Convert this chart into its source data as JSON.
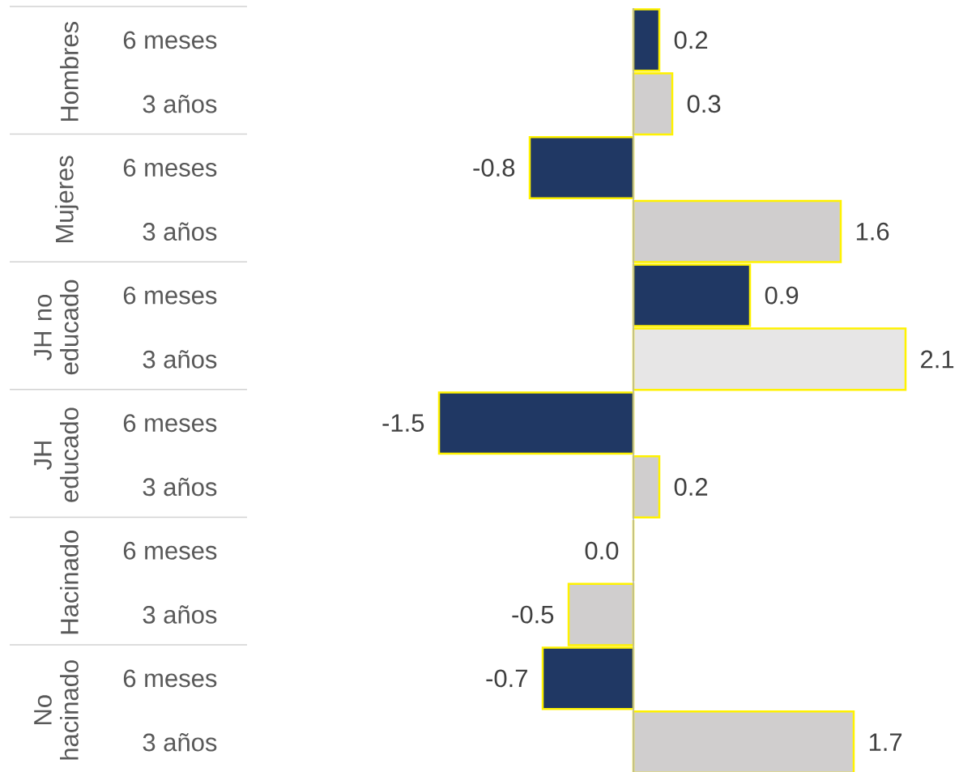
{
  "chart_data": {
    "type": "bar",
    "orientation": "horizontal",
    "categories": [
      "6 meses",
      "3 años",
      "6 meses",
      "3 años",
      "6 meses",
      "3 años",
      "6 meses",
      "3 años",
      "6 meses",
      "3 años",
      "6 meses",
      "3 años"
    ],
    "values": [
      0.2,
      0.3,
      -0.8,
      1.6,
      0.9,
      2.1,
      -1.5,
      0.2,
      0.0,
      -0.5,
      -0.7,
      1.7
    ],
    "colors": [
      "#203864",
      "#d0cece",
      "#203864",
      "#d0cece",
      "#203864",
      "#e7e6e6",
      "#203864",
      "#d0cece",
      "#203864",
      "#d0cece",
      "#203864",
      "#d0cece"
    ],
    "annotations": [
      "Hombres",
      "Mujeres",
      "JH no educado",
      "JH educado",
      "Hacinado",
      "No hacinado"
    ],
    "value_labels": [
      "0.2",
      "0.3",
      "-0.8",
      "1.6",
      "0.9",
      "2.1",
      "-1.5",
      "0.2",
      "0.0",
      "-0.5",
      "-0.7",
      "1.7"
    ]
  }
}
